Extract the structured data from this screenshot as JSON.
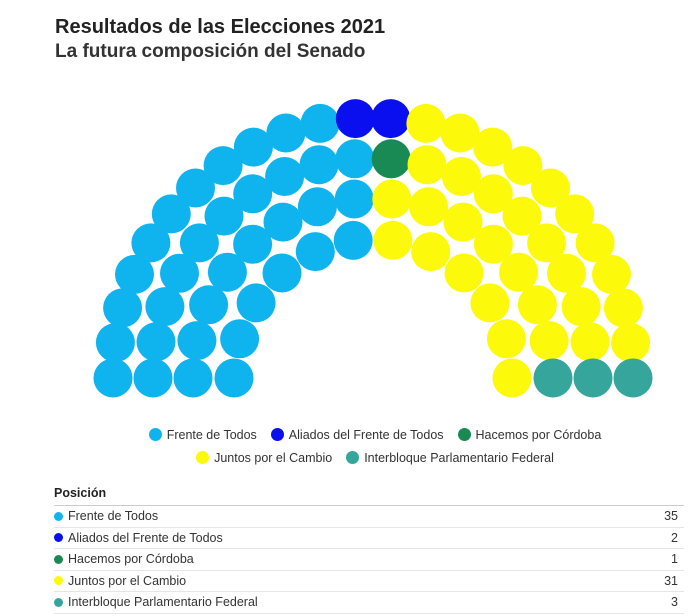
{
  "header": {
    "title": "Resultados de las Elecciones 2021",
    "subtitle": "La futura composición del Senado"
  },
  "chart_data": {
    "type": "parliament",
    "title": "Resultados de las Elecciones 2021",
    "subtitle": "La futura composición del Senado",
    "total_seats": 72,
    "parties": [
      {
        "name": "Frente de Todos",
        "seats": 35,
        "color": "#0fb4ef"
      },
      {
        "name": "Aliados del Frente de Todos",
        "seats": 2,
        "color": "#0a0ff0"
      },
      {
        "name": "Hacemos por Córdoba",
        "seats": 1,
        "color": "#1a8a55"
      },
      {
        "name": "Juntos por el Cambio",
        "seats": 31,
        "color": "#fcf90a"
      },
      {
        "name": "Interbloque Parlamentario Federal",
        "seats": 3,
        "color": "#36a69c"
      }
    ],
    "legend_position": "bottom"
  },
  "table": {
    "header_label": "Posición",
    "rows": [
      {
        "name": "Frente de Todos",
        "seats": "35"
      },
      {
        "name": "Aliados del Frente de Todos",
        "seats": "2"
      },
      {
        "name": "Hacemos por Córdoba",
        "seats": "1"
      },
      {
        "name": "Juntos por el Cambio",
        "seats": "31"
      },
      {
        "name": "Interbloque Parlamentario Federal",
        "seats": "3"
      }
    ]
  }
}
